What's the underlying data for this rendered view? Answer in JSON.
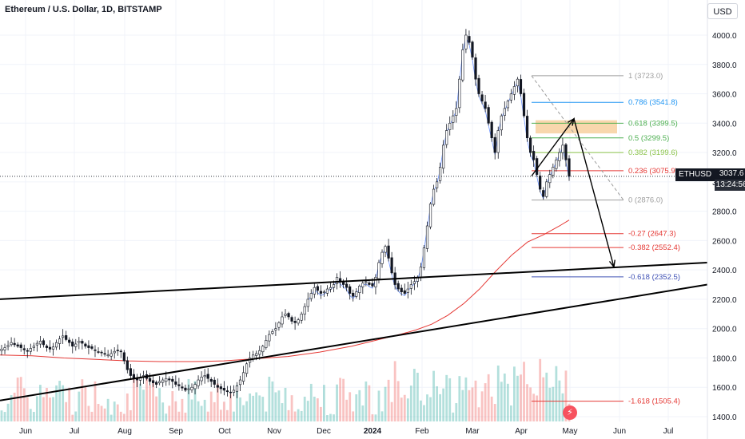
{
  "header": {
    "title": "Ethereum / U.S. Dollar, 1D, BITSTAMP",
    "currency": "USD"
  },
  "price_tag": {
    "symbol": "ETHUSD",
    "price": "3037.6",
    "countdown": "13:24:56"
  },
  "colors": {
    "up": "#26a69a",
    "down": "#ef5350",
    "trendline": "#000000",
    "ma_red": "#e53935",
    "ma_blue": "#2962ff",
    "fib_zone": "#f5c68a"
  },
  "chart_data": {
    "type": "candlestick",
    "y_axis": {
      "min": 1400,
      "max": 4100,
      "ticks": [
        "4000.0",
        "3800.0",
        "3600.0",
        "3400.0",
        "3200.0",
        "3000.0",
        "2800.0",
        "2600.0",
        "2400.0",
        "2200.0",
        "2000.0",
        "1800.0",
        "1600.0",
        "1400.0"
      ]
    },
    "x_axis": {
      "ticks": [
        "Jun",
        "Jul",
        "Aug",
        "Sep",
        "Oct",
        "Nov",
        "Dec",
        "2024",
        "Feb",
        "Mar",
        "Apr",
        "May",
        "Jun",
        "Jul"
      ]
    },
    "last_price": 3037.6,
    "fib_levels": [
      {
        "label": "1 (3723.0)",
        "value": 3723.0,
        "color": "#9e9e9e"
      },
      {
        "label": "0.786 (3541.8)",
        "value": 3541.8,
        "color": "#2196f3"
      },
      {
        "label": "0.618 (3399.5)",
        "value": 3399.5,
        "color": "#4caf50"
      },
      {
        "label": "0.5 (3299.5)",
        "value": 3299.5,
        "color": "#4caf50"
      },
      {
        "label": "0.382 (3199.6)",
        "value": 3199.6,
        "color": "#8bc34a"
      },
      {
        "label": "0.236 (3075.9)",
        "value": 3075.9,
        "color": "#e53935"
      },
      {
        "label": "0 (2876.0)",
        "value": 2876.0,
        "color": "#9e9e9e"
      },
      {
        "label": "-0.27 (2647.3)",
        "value": 2647.3,
        "color": "#e53935"
      },
      {
        "label": "-0.382 (2552.4)",
        "value": 2552.4,
        "color": "#e53935"
      },
      {
        "label": "-0.618 (2352.5)",
        "value": 2352.5,
        "color": "#3f51b5"
      },
      {
        "label": "-1.618 (1505.4)",
        "value": 1505.4,
        "color": "#e53935"
      }
    ],
    "closes": [
      1860,
      1870,
      1885,
      1905,
      1890,
      1880,
      1870,
      1855,
      1850,
      1865,
      1880,
      1900,
      1915,
      1890,
      1870,
      1860,
      1875,
      1905,
      1930,
      1950,
      1925,
      1905,
      1880,
      1895,
      1915,
      1900,
      1880,
      1870,
      1865,
      1850,
      1840,
      1835,
      1825,
      1820,
      1830,
      1845,
      1850,
      1845,
      1780,
      1720,
      1680,
      1660,
      1650,
      1665,
      1680,
      1660,
      1640,
      1630,
      1620,
      1640,
      1650,
      1660,
      1650,
      1640,
      1620,
      1610,
      1595,
      1580,
      1590,
      1600,
      1620,
      1650,
      1670,
      1680,
      1660,
      1640,
      1620,
      1600,
      1590,
      1580,
      1570,
      1565,
      1580,
      1610,
      1650,
      1700,
      1760,
      1800,
      1820,
      1830,
      1850,
      1880,
      1920,
      1960,
      1980,
      2000,
      2040,
      2080,
      2100,
      2080,
      2050,
      2040,
      2060,
      2100,
      2150,
      2200,
      2240,
      2280,
      2260,
      2240,
      2250,
      2270,
      2280,
      2300,
      2350,
      2320,
      2300,
      2280,
      2240,
      2220,
      2250,
      2290,
      2310,
      2320,
      2300,
      2290,
      2350,
      2450,
      2520,
      2560,
      2480,
      2380,
      2300,
      2270,
      2250,
      2240,
      2270,
      2300,
      2320,
      2350,
      2420,
      2550,
      2700,
      2850,
      2950,
      3000,
      3100,
      3250,
      3350,
      3400,
      3450,
      3500,
      3700,
      3900,
      4000,
      3950,
      3850,
      3700,
      3600,
      3550,
      3500,
      3400,
      3300,
      3200,
      3350,
      3450,
      3500,
      3550,
      3600,
      3650,
      3700,
      3600,
      3450,
      3300,
      3200,
      3150,
      3050,
      2950,
      2900,
      3000,
      3050,
      3100,
      3150,
      3200,
      3250,
      3150,
      3037.6
    ],
    "ma200": [
      [
        0,
        1820
      ],
      [
        40,
        1815
      ],
      [
        80,
        1800
      ],
      [
        120,
        1790
      ],
      [
        160,
        1780
      ],
      [
        200,
        1775
      ],
      [
        240,
        1775
      ],
      [
        280,
        1780
      ],
      [
        320,
        1795
      ],
      [
        360,
        1810
      ],
      [
        400,
        1840
      ],
      [
        440,
        1880
      ],
      [
        470,
        1920
      ],
      [
        500,
        1960
      ],
      [
        520,
        1990
      ],
      [
        540,
        2030
      ],
      [
        560,
        2090
      ],
      [
        580,
        2170
      ],
      [
        600,
        2270
      ],
      [
        620,
        2390
      ],
      [
        640,
        2500
      ],
      [
        660,
        2590
      ],
      [
        680,
        2640
      ],
      [
        700,
        2700
      ],
      [
        712,
        2740
      ]
    ],
    "trendlines": [
      {
        "x1": 0,
        "y1": 2200,
        "x2": 885,
        "y2": 2450
      },
      {
        "x1": 0,
        "y1": 1510,
        "x2": 885,
        "y2": 2300
      }
    ],
    "projection": [
      [
        665,
        3040
      ],
      [
        718,
        3430
      ],
      [
        768,
        2420
      ]
    ]
  }
}
